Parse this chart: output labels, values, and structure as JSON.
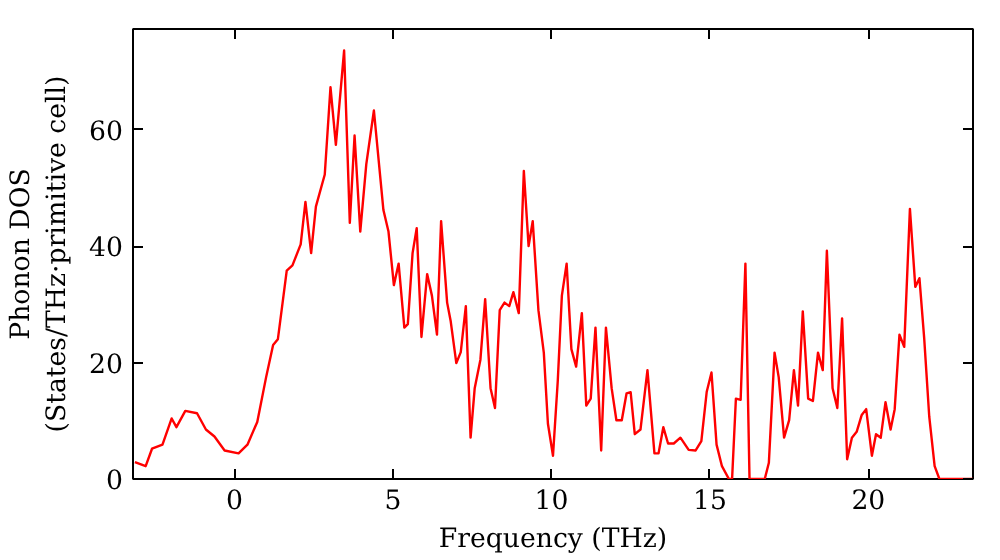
{
  "chart_data": {
    "type": "line",
    "xlabel": "Frequency (THz)",
    "ylabel": "Phonon DOS\n(States/THz·primitive cell)",
    "xlim": [
      -3.2,
      23.3
    ],
    "ylim": [
      0,
      77.3
    ],
    "xticks": [
      0,
      5,
      10,
      15,
      20
    ],
    "yticks": [
      0,
      20,
      40,
      60
    ],
    "series": [
      {
        "color": "#ff0000",
        "x": [
          -3.14,
          -2.8,
          -2.6,
          -2.27,
          -1.98,
          -1.83,
          -1.55,
          -1.18,
          -0.9,
          -0.63,
          -0.31,
          0.13,
          0.41,
          0.72,
          1.0,
          1.22,
          1.37,
          1.65,
          1.83,
          2.09,
          2.24,
          2.42,
          2.57,
          2.85,
          3.03,
          3.2,
          3.46,
          3.64,
          3.79,
          3.97,
          4.16,
          4.4,
          4.7,
          4.86,
          5.03,
          5.18,
          5.36,
          5.47,
          5.62,
          5.75,
          5.9,
          6.08,
          6.23,
          6.39,
          6.52,
          6.71,
          6.82,
          7.0,
          7.14,
          7.3,
          7.45,
          7.58,
          7.76,
          7.91,
          8.08,
          8.22,
          8.37,
          8.52,
          8.67,
          8.8,
          8.97,
          9.13,
          9.28,
          9.41,
          9.59,
          9.76,
          9.89,
          10.05,
          10.2,
          10.33,
          10.48,
          10.63,
          10.78,
          10.96,
          11.1,
          11.24,
          11.39,
          11.57,
          11.72,
          11.9,
          12.05,
          12.22,
          12.37,
          12.5,
          12.63,
          12.81,
          13.03,
          13.25,
          13.38,
          13.53,
          13.68,
          13.86,
          14.07,
          14.33,
          14.55,
          14.73,
          14.9,
          15.05,
          15.21,
          15.38,
          15.6,
          15.7,
          15.82,
          15.97,
          16.12,
          16.25,
          16.73,
          16.86,
          17.04,
          17.17,
          17.34,
          17.5,
          17.65,
          17.78,
          17.93,
          18.1,
          18.25,
          18.41,
          18.56,
          18.69,
          18.87,
          19.02,
          19.17,
          19.33,
          19.48,
          19.63,
          19.79,
          19.93,
          20.11,
          20.24,
          20.39,
          20.54,
          20.7,
          20.83,
          20.98,
          21.13,
          21.31,
          21.48,
          21.61,
          21.76,
          21.92,
          22.09,
          22.24,
          23.3
        ],
        "values": [
          2.9,
          2.2,
          5.2,
          5.9,
          10.4,
          8.9,
          11.7,
          11.3,
          8.5,
          7.3,
          4.9,
          4.4,
          5.9,
          9.8,
          17.5,
          23,
          24,
          35.8,
          36.7,
          40.3,
          47.6,
          38.8,
          46.8,
          52.3,
          67.3,
          57.4,
          73.6,
          44,
          59,
          42.5,
          54.1,
          63.3,
          46.2,
          42.5,
          33.3,
          37,
          26,
          26.6,
          38.8,
          43.1,
          24.4,
          35.2,
          31.5,
          24.8,
          44.3,
          30.3,
          27.2,
          19.9,
          21.8,
          29.7,
          7.1,
          15.6,
          20.5,
          30.9,
          15.6,
          12.2,
          29,
          30.3,
          29.7,
          32.1,
          28.5,
          52.9,
          40,
          44.3,
          29,
          21.7,
          9.5,
          4,
          16.8,
          31.5,
          37,
          22.3,
          19.3,
          28.5,
          12.6,
          13.8,
          26,
          4.9,
          26,
          15.6,
          10.1,
          10.1,
          14.7,
          14.9,
          7.7,
          8.5,
          18.7,
          4.4,
          4.4,
          8.9,
          6.1,
          6.1,
          7.1,
          5,
          4.9,
          6.5,
          15,
          18.3,
          5.9,
          2.2,
          0,
          0,
          13.8,
          13.6,
          37,
          0,
          0,
          2.8,
          21.7,
          17.5,
          7.1,
          10.1,
          18.7,
          12.6,
          28.8,
          13.8,
          13.4,
          21.7,
          18.7,
          39.2,
          15.6,
          12.2,
          27.6,
          3.4,
          7.1,
          8.1,
          11,
          12,
          4,
          7.7,
          7.1,
          13.2,
          8.5,
          12,
          24.8,
          22.7,
          46.4,
          33,
          34.5,
          24.2,
          10.7,
          2.2,
          0,
          0
        ]
      }
    ]
  }
}
